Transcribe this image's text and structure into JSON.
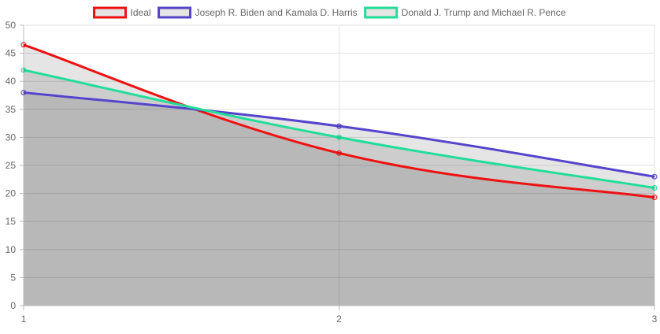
{
  "chart_data": {
    "type": "line",
    "title": "",
    "xlabel": "",
    "ylabel": "",
    "x": [
      1,
      2,
      3
    ],
    "ylim": [
      0,
      50
    ],
    "yticks": [
      0,
      5,
      10,
      15,
      20,
      25,
      30,
      35,
      40,
      45,
      50
    ],
    "grid": true,
    "legend_position": "top",
    "series": [
      {
        "name": "Ideal",
        "color": "#ee1111",
        "values": [
          46.5,
          27.2,
          19.3
        ]
      },
      {
        "name": "Joseph R. Biden and Kamala D. Harris",
        "color": "#5544cc",
        "values": [
          38,
          32,
          23
        ]
      },
      {
        "name": "Donald J. Trump and Michael R. Pence",
        "color": "#22dd99",
        "values": [
          42,
          30,
          21
        ]
      }
    ]
  }
}
